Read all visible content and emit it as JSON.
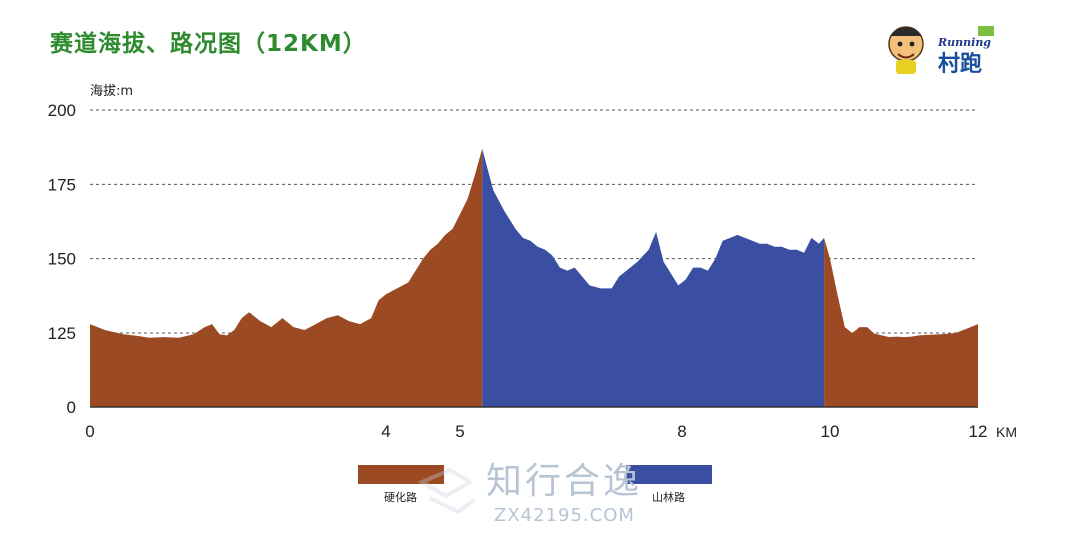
{
  "header": {
    "title": "赛道海拔、路况图（12KM）"
  },
  "logo": {
    "brand_text": "Running",
    "main_text": "村跑"
  },
  "watermark": {
    "text": "知行合逸",
    "site": "ZX42195.COM"
  },
  "colors": {
    "hard_road": "#9c4a23",
    "trail": "#3a4fa2",
    "grid": "#555555",
    "title": "#2e8b2e"
  },
  "chart_data": {
    "type": "area",
    "ylabel": "海拔:m",
    "xlabel": "KM",
    "ylim": [
      0,
      200
    ],
    "xlim": [
      0,
      12
    ],
    "grid": "horizontal dashed",
    "y_ticks": [
      "0",
      "125",
      "150",
      "175",
      "200"
    ],
    "x_ticks": [
      {
        "value": 0,
        "label": "0"
      },
      {
        "value": 4,
        "label": "4"
      },
      {
        "value": 5,
        "label": "5"
      },
      {
        "value": 8,
        "label": "8"
      },
      {
        "value": 10,
        "label": "10"
      },
      {
        "value": 12,
        "label": "12"
      }
    ],
    "legend": [
      {
        "label": "硬化路",
        "color": "#9c4a23"
      },
      {
        "label": "山林路",
        "color": "#3a4fa2"
      }
    ],
    "legend_position": "bottom",
    "series": [
      {
        "name": "硬化路",
        "color": "#9c4a23",
        "points": [
          [
            0,
            128
          ],
          [
            0.2,
            126
          ],
          [
            0.45,
            123
          ],
          [
            0.65,
            120
          ],
          [
            0.8,
            117
          ],
          [
            1.0,
            118
          ],
          [
            1.2,
            117
          ],
          [
            1.4,
            123
          ],
          [
            1.55,
            127
          ],
          [
            1.65,
            128
          ],
          [
            1.75,
            123
          ],
          [
            1.85,
            121
          ],
          [
            1.95,
            126
          ],
          [
            2.05,
            130
          ],
          [
            2.15,
            132
          ],
          [
            2.3,
            129
          ],
          [
            2.45,
            127
          ],
          [
            2.6,
            130
          ],
          [
            2.75,
            127
          ],
          [
            2.9,
            126
          ],
          [
            3.05,
            128
          ],
          [
            3.2,
            130
          ],
          [
            3.35,
            131
          ],
          [
            3.5,
            129
          ],
          [
            3.65,
            128
          ],
          [
            3.8,
            130
          ],
          [
            3.9,
            136
          ],
          [
            4.0,
            138
          ],
          [
            4.15,
            140
          ],
          [
            4.3,
            142
          ],
          [
            4.4,
            146
          ],
          [
            4.5,
            150
          ],
          [
            4.6,
            153
          ],
          [
            4.7,
            155
          ],
          [
            4.8,
            158
          ],
          [
            4.9,
            160
          ],
          [
            5.0,
            165
          ],
          [
            5.1,
            170
          ],
          [
            5.2,
            178
          ],
          [
            5.3,
            187
          ]
        ]
      },
      {
        "name": "山林路",
        "color": "#3a4fa2",
        "points": [
          [
            5.3,
            187
          ],
          [
            5.45,
            173
          ],
          [
            5.6,
            166
          ],
          [
            5.75,
            160
          ],
          [
            5.85,
            157
          ],
          [
            5.95,
            156
          ],
          [
            6.05,
            154
          ],
          [
            6.15,
            153
          ],
          [
            6.25,
            151
          ],
          [
            6.35,
            147
          ],
          [
            6.45,
            146
          ],
          [
            6.55,
            147
          ],
          [
            6.65,
            144
          ],
          [
            6.75,
            141
          ],
          [
            6.9,
            140
          ],
          [
            7.05,
            140
          ],
          [
            7.15,
            144
          ],
          [
            7.25,
            146
          ],
          [
            7.4,
            149
          ],
          [
            7.55,
            153
          ],
          [
            7.65,
            159
          ],
          [
            7.75,
            149
          ],
          [
            7.85,
            145
          ],
          [
            7.95,
            141
          ],
          [
            8.05,
            143
          ],
          [
            8.15,
            147
          ],
          [
            8.25,
            147
          ],
          [
            8.35,
            146
          ],
          [
            8.45,
            150
          ],
          [
            8.55,
            156
          ],
          [
            8.65,
            157
          ],
          [
            8.75,
            158
          ],
          [
            8.85,
            157
          ],
          [
            8.95,
            156
          ],
          [
            9.05,
            155
          ],
          [
            9.15,
            155
          ],
          [
            9.25,
            154
          ],
          [
            9.35,
            154
          ],
          [
            9.45,
            153
          ],
          [
            9.55,
            153
          ],
          [
            9.65,
            152
          ],
          [
            9.75,
            157
          ],
          [
            9.85,
            155
          ],
          [
            9.92,
            157
          ]
        ]
      },
      {
        "name": "硬化路",
        "color": "#9c4a23",
        "points": [
          [
            9.92,
            157
          ],
          [
            10.0,
            150
          ],
          [
            10.1,
            138
          ],
          [
            10.2,
            127
          ],
          [
            10.3,
            125
          ],
          [
            10.4,
            127
          ],
          [
            10.5,
            127
          ],
          [
            10.6,
            124
          ],
          [
            10.7,
            121
          ],
          [
            10.8,
            118
          ],
          [
            10.9,
            119
          ],
          [
            11.0,
            118
          ],
          [
            11.1,
            119
          ],
          [
            11.2,
            121
          ],
          [
            11.35,
            122
          ],
          [
            11.5,
            123
          ],
          [
            11.7,
            125
          ],
          [
            11.9,
            127
          ],
          [
            12.0,
            128
          ]
        ]
      }
    ]
  }
}
